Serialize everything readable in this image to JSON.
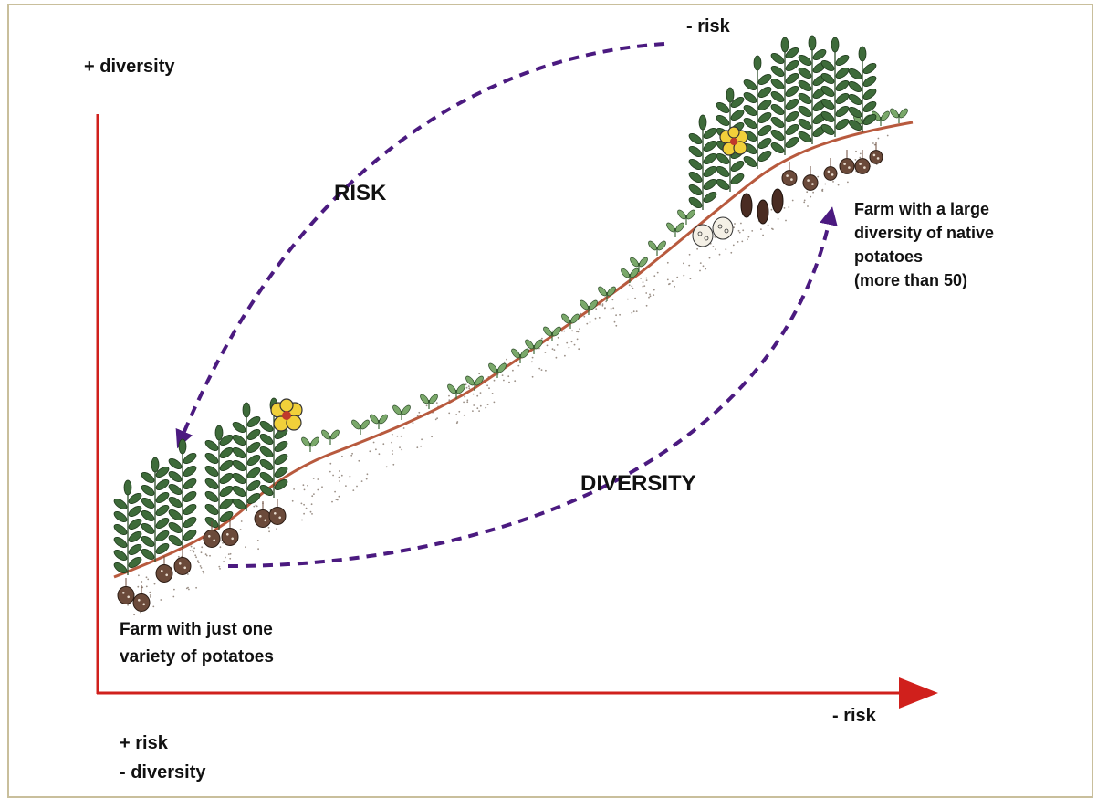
{
  "labels": {
    "y_top": "+ diversity",
    "top_risk": "- risk",
    "risk_arrow": "RISK",
    "diversity_arrow": "DIVERSITY",
    "right_farm": "Farm with a large\ndiversity of native\npotatoes\n(more than 50)",
    "left_farm": "Farm with just one\nvariety of potatoes",
    "x_right": "- risk",
    "origin_line1": "+ risk",
    "origin_line2": "- diversity"
  },
  "colors": {
    "axis": "#d0201c",
    "arrow": "#4b1a80",
    "ground": "#b85a3e",
    "leaf": "#3e6b3a",
    "tuber": "#6b4a3a",
    "flower": "#f1d03a"
  },
  "icons": {
    "plants": "potato-plant-icon",
    "tubers": "potato-tuber-icon",
    "flowers": "potato-flower-icon",
    "seedlings": "seedling-icon"
  }
}
